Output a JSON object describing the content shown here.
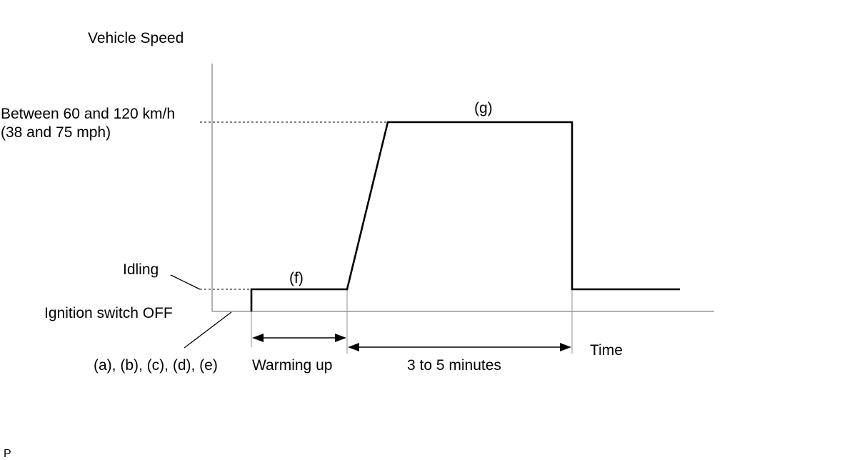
{
  "labels": {
    "y_axis_title": "Vehicle Speed",
    "x_axis_title": "Time",
    "speed_range_line1": "Between 60 and 120 km/h",
    "speed_range_line2": "(38 and 75 mph)",
    "idling": "Idling",
    "ignition_off": "Ignition switch OFF",
    "steps_a_to_e": "(a), (b), (c), (d), (e)",
    "step_f": "(f)",
    "step_g": "(g)",
    "warming_up": "Warming up",
    "duration": "3 to 5 minutes",
    "corner_mark": "P"
  }
}
